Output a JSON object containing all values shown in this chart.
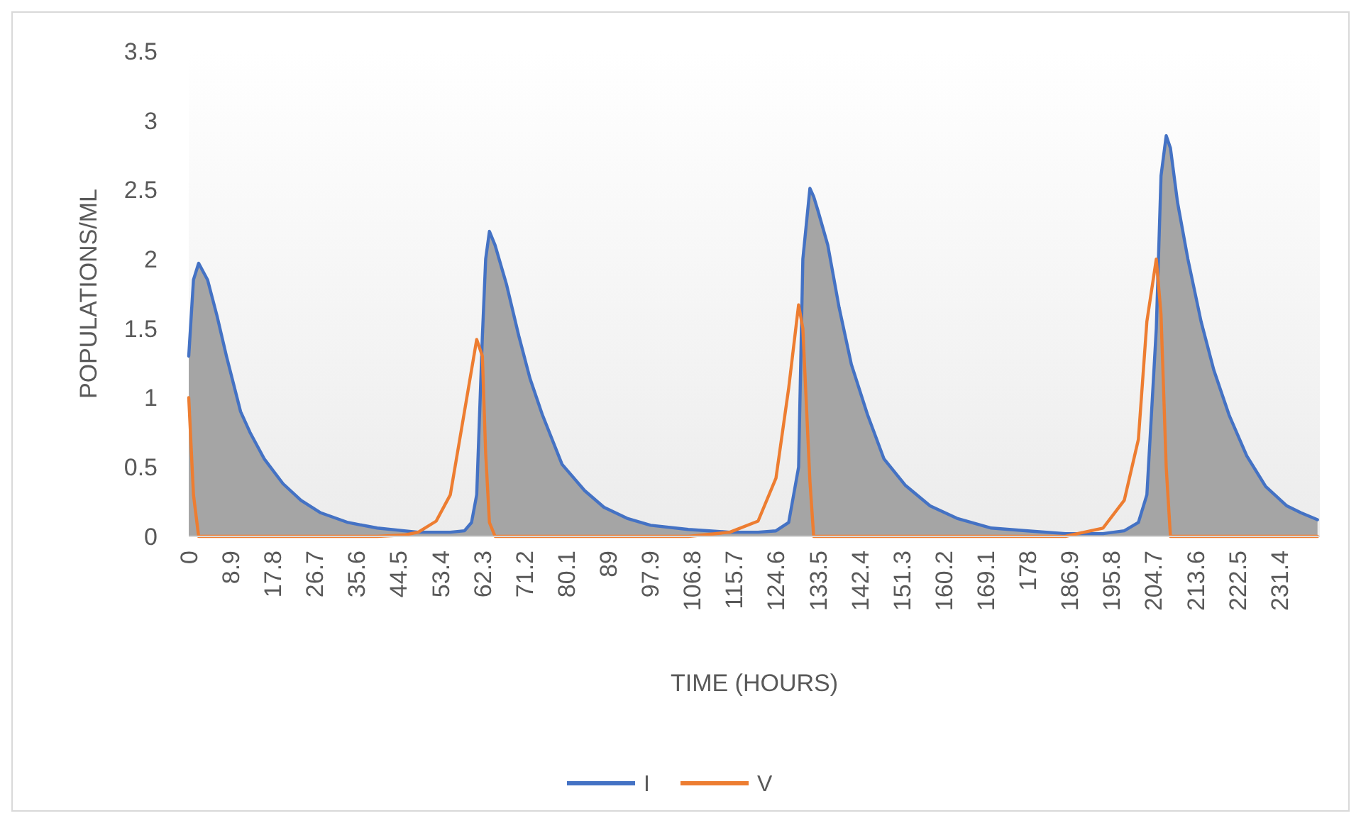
{
  "chart_data": {
    "type": "line",
    "xlabel": "TIME (HOURS)",
    "ylabel": "POPULATIONS/ML",
    "x": [
      0,
      1,
      2.1,
      4,
      6,
      8,
      11,
      13,
      16,
      20,
      23.8,
      28,
      33.8,
      40,
      45.7,
      48.7,
      52.5,
      55.5,
      58.5,
      60,
      61.1,
      62.3,
      63,
      63.8,
      65,
      67.4,
      70,
      72.4,
      75,
      79.2,
      84,
      88.1,
      93,
      98,
      106,
      114.8,
      120.8,
      124.6,
      127.3,
      129.4,
      130.3,
      131.8,
      132.6,
      133.5,
      135.6,
      138,
      140.6,
      144,
      147.5,
      152,
      157.3,
      163,
      170.3,
      178,
      186,
      190,
      194,
      198.5,
      201.5,
      203.3,
      205.3,
      206.3,
      207.4,
      208.3,
      209.8,
      212,
      214.8,
      217.5,
      220.8,
      224.5,
      228.5,
      233,
      236,
      239.5
    ],
    "series": [
      {
        "name": "I",
        "type": "area",
        "color": "#4472c4",
        "values": [
          1.3,
          1.85,
          1.97,
          1.85,
          1.59,
          1.3,
          0.9,
          0.75,
          0.56,
          0.38,
          0.26,
          0.17,
          0.1,
          0.06,
          0.04,
          0.03,
          0.03,
          0.03,
          0.04,
          0.1,
          0.3,
          1.44,
          2.0,
          2.2,
          2.1,
          1.82,
          1.45,
          1.14,
          0.88,
          0.52,
          0.33,
          0.21,
          0.13,
          0.08,
          0.05,
          0.03,
          0.03,
          0.04,
          0.1,
          0.5,
          2.0,
          2.51,
          2.45,
          2.35,
          2.1,
          1.65,
          1.24,
          0.88,
          0.56,
          0.37,
          0.22,
          0.13,
          0.06,
          0.04,
          0.02,
          0.02,
          0.02,
          0.04,
          0.1,
          0.3,
          1.5,
          2.6,
          2.89,
          2.8,
          2.41,
          2.0,
          1.55,
          1.2,
          0.87,
          0.58,
          0.36,
          0.22,
          0.17,
          0.12
        ]
      },
      {
        "name": "V",
        "color": "#ed7d31",
        "values": [
          1.0,
          0.3,
          0,
          0,
          0,
          0,
          0,
          0,
          0,
          0,
          0,
          0,
          0,
          0,
          0.01,
          0.03,
          0.11,
          0.3,
          0.9,
          1.2,
          1.42,
          1.3,
          0.6,
          0.1,
          0,
          0,
          0,
          0,
          0,
          0,
          0,
          0,
          0,
          0,
          0,
          0.03,
          0.11,
          0.42,
          1.07,
          1.67,
          1.5,
          0.4,
          0,
          0,
          0,
          0,
          0,
          0,
          0,
          0,
          0,
          0,
          0,
          0,
          0,
          0.03,
          0.06,
          0.26,
          0.7,
          1.55,
          2.0,
          1.6,
          0.5,
          0,
          0,
          0,
          0,
          0,
          0,
          0,
          0,
          0,
          0,
          0
        ]
      }
    ],
    "xlim": [
      0,
      240
    ],
    "xticks": [
      0,
      8.9,
      17.8,
      26.7,
      35.6,
      44.5,
      53.4,
      62.3,
      71.2,
      80.1,
      89,
      97.9,
      106.8,
      115.7,
      124.6,
      133.5,
      142.4,
      151.3,
      160.2,
      169.1,
      178,
      186.9,
      195.8,
      204.7,
      213.6,
      222.5,
      231.4
    ],
    "ylim": [
      0,
      3.5
    ],
    "yticks": [
      0,
      0.5,
      1,
      1.5,
      2,
      2.5,
      3,
      3.5
    ],
    "grid": false,
    "legend": "bottom"
  }
}
